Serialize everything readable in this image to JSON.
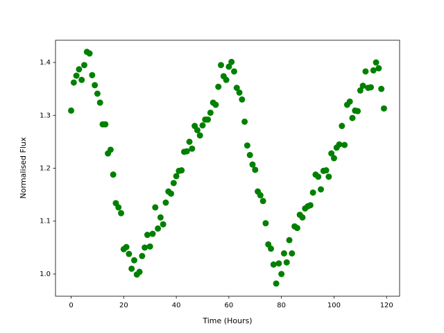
{
  "chart_data": {
    "type": "scatter",
    "xlabel": "Time (Hours)",
    "ylabel": "Normalised Flux",
    "color": "#008000",
    "xlim": [
      -5.95,
      124.95
    ],
    "ylim": [
      0.958,
      1.442
    ],
    "xticks": [
      0,
      20,
      40,
      60,
      80,
      100,
      120
    ],
    "yticks": [
      {
        "value": 1,
        "label": "1.0"
      },
      1.1,
      1.2,
      1.3,
      1.4
    ],
    "grid": false,
    "x": [
      0,
      1,
      2,
      3,
      4,
      5,
      6,
      7,
      8,
      9,
      10,
      11,
      12,
      13,
      14,
      15,
      16,
      17,
      18,
      19,
      20,
      21,
      22,
      23,
      24,
      25,
      26,
      27,
      28,
      29,
      30,
      31,
      32,
      33,
      34,
      35,
      36,
      37,
      38,
      39,
      40,
      41,
      42,
      43,
      44,
      45,
      46,
      47,
      48,
      49,
      50,
      51,
      52,
      53,
      54,
      55,
      56,
      57,
      58,
      59,
      60,
      61,
      62,
      63,
      64,
      65,
      66,
      67,
      68,
      69,
      70,
      71,
      72,
      73,
      74,
      75,
      76,
      77,
      78,
      79,
      80,
      81,
      82,
      83,
      84,
      85,
      86,
      87,
      88,
      89,
      90,
      91,
      92,
      93,
      94,
      95,
      96,
      97,
      98,
      99,
      100,
      101,
      102,
      103,
      104,
      105,
      106,
      107,
      108,
      109,
      110,
      111,
      112,
      113,
      114,
      115,
      116,
      117,
      118,
      119
    ],
    "values": [
      1.309,
      1.362,
      1.375,
      1.387,
      1.367,
      1.395,
      1.42,
      1.417,
      1.376,
      1.357,
      1.341,
      1.324,
      1.283,
      1.283,
      1.228,
      1.235,
      1.188,
      1.134,
      1.126,
      1.115,
      1.047,
      1.051,
      1.038,
      1.01,
      1.026,
      0.999,
      1.004,
      1.034,
      1.05,
      1.074,
      1.052,
      1.076,
      1.126,
      1.086,
      1.107,
      1.094,
      1.135,
      1.156,
      1.152,
      1.172,
      1.185,
      1.195,
      1.196,
      1.231,
      1.232,
      1.25,
      1.237,
      1.28,
      1.272,
      1.262,
      1.281,
      1.292,
      1.292,
      1.305,
      1.324,
      1.32,
      1.354,
      1.395,
      1.374,
      1.367,
      1.392,
      1.401,
      1.383,
      1.352,
      1.343,
      1.33,
      1.288,
      1.243,
      1.225,
      1.207,
      1.197,
      1.156,
      1.149,
      1.138,
      1.096,
      1.056,
      1.048,
      1.018,
      0.982,
      1.02,
      1.0,
      1.039,
      1.022,
      1.064,
      1.039,
      1.09,
      1.087,
      1.112,
      1.107,
      1.124,
      1.128,
      1.13,
      1.154,
      1.188,
      1.184,
      1.16,
      1.195,
      1.196,
      1.184,
      1.228,
      1.219,
      1.239,
      1.245,
      1.28,
      1.244,
      1.32,
      1.326,
      1.295,
      1.309,
      1.308,
      1.347,
      1.356,
      1.383,
      1.352,
      1.353,
      1.385,
      1.4,
      1.389,
      1.35,
      1.313
    ]
  }
}
